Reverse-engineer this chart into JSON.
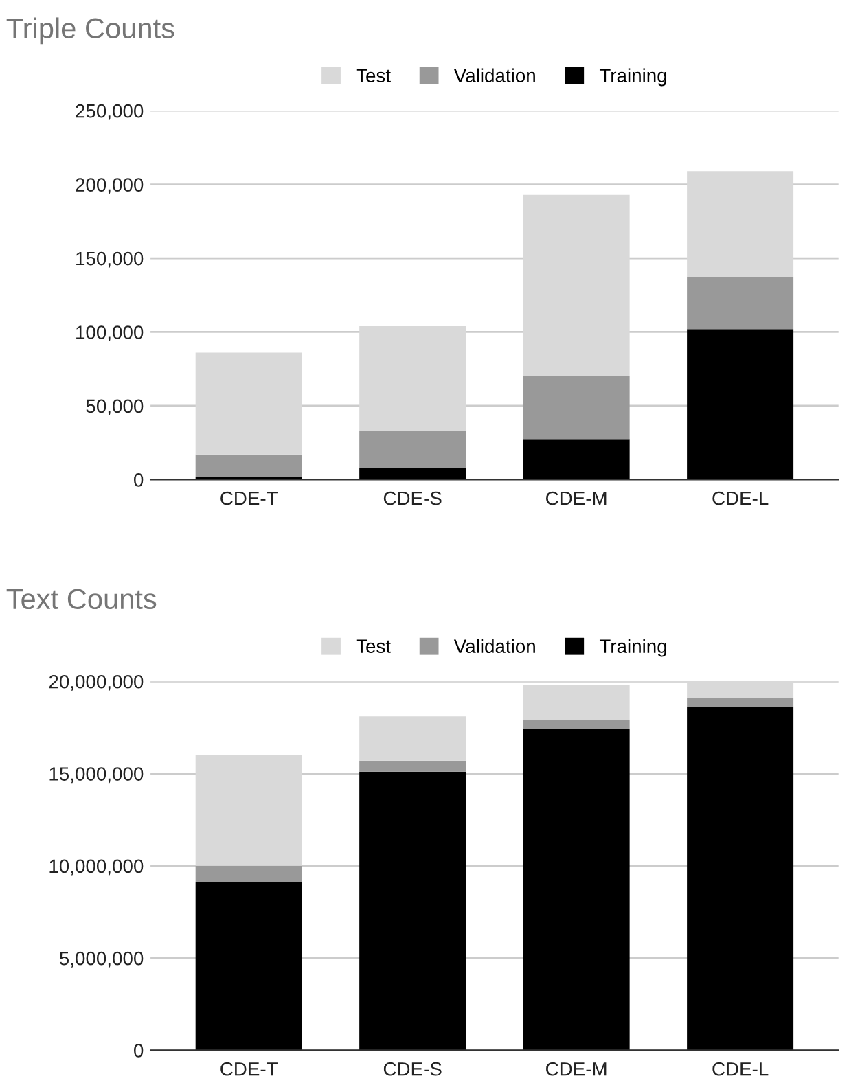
{
  "chart_data": [
    {
      "type": "bar",
      "title": "Triple Counts",
      "stacked": true,
      "legend": "top",
      "grid": "y",
      "categories": [
        "CDE-T",
        "CDE-S",
        "CDE-M",
        "CDE-L"
      ],
      "series": [
        {
          "name": "Training",
          "color": "#000000",
          "values": [
            2000,
            8000,
            27000,
            102000
          ]
        },
        {
          "name": "Validation",
          "color": "#999999",
          "values": [
            15000,
            25000,
            43000,
            35000
          ]
        },
        {
          "name": "Test",
          "color": "#d9d9d9",
          "values": [
            69000,
            71000,
            123000,
            72000
          ]
        }
      ],
      "ylim": [
        0,
        250000
      ],
      "yticks": [
        {
          "value": 0,
          "label": "0"
        },
        {
          "value": 50000,
          "label": "50,000"
        },
        {
          "value": 100000,
          "label": "100,000"
        },
        {
          "value": 150000,
          "label": "150,000"
        },
        {
          "value": 200000,
          "label": "200,000"
        },
        {
          "value": 250000,
          "label": "250,000"
        }
      ]
    },
    {
      "type": "bar",
      "title": "Text Counts",
      "stacked": true,
      "legend": "top",
      "grid": "y",
      "categories": [
        "CDE-T",
        "CDE-S",
        "CDE-M",
        "CDE-L"
      ],
      "series": [
        {
          "name": "Training",
          "color": "#000000",
          "values": [
            9100000,
            15100000,
            17400000,
            18600000
          ]
        },
        {
          "name": "Validation",
          "color": "#999999",
          "values": [
            900000,
            600000,
            500000,
            500000
          ]
        },
        {
          "name": "Test",
          "color": "#d9d9d9",
          "values": [
            6000000,
            2400000,
            1900000,
            800000
          ]
        }
      ],
      "ylim": [
        0,
        20000000
      ],
      "yticks": [
        {
          "value": 0,
          "label": "0"
        },
        {
          "value": 5000000,
          "label": "5,000,000"
        },
        {
          "value": 10000000,
          "label": "10,000,000"
        },
        {
          "value": 15000000,
          "label": "15,000,000"
        },
        {
          "value": 20000000,
          "label": "20,000,000"
        }
      ]
    }
  ]
}
